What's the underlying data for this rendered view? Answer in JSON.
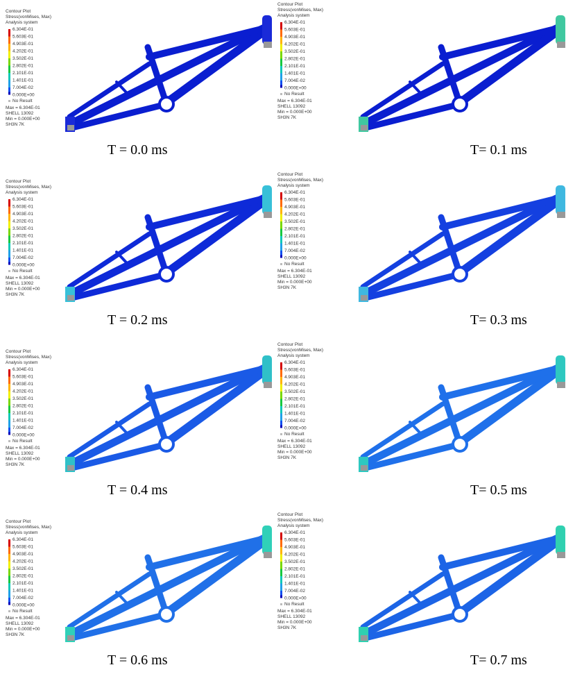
{
  "legend": {
    "title": "Contour Plot",
    "subtitle": "Stress(vonMises, Max)",
    "system": "Analysis system",
    "levels": [
      "6.304E-01",
      "5.603E-01",
      "4.903E-01",
      "4.202E-01",
      "3.502E-01",
      "2.802E-01",
      "2.101E-01",
      "1.401E-01",
      "7.004E-02",
      "0.000E+00"
    ],
    "level_colors": [
      "#d40000",
      "#ff6a00",
      "#ffb400",
      "#f0f000",
      "#7ad800",
      "#18c840",
      "#10c8b8",
      "#20a0e8",
      "#1050f0",
      "#0000b8"
    ],
    "no_result": "No Result",
    "max": "Max = 6.304E-01",
    "element": "SHELL 13092",
    "min": "Min = 0.000E+00",
    "node": "SH3N 7K"
  },
  "panels": [
    {
      "caption": "T = 0.0 ms",
      "frame_color": "#0a1ed0",
      "accent_color": "#1a2ad8"
    },
    {
      "caption": "T= 0.1 ms",
      "frame_color": "#0a1ed0",
      "accent_color": "#40c8a0"
    },
    {
      "caption": "T = 0.2 ms",
      "frame_color": "#0e2ad8",
      "accent_color": "#38c0d8"
    },
    {
      "caption": "T= 0.3 ms",
      "frame_color": "#1440e0",
      "accent_color": "#3fb8e0"
    },
    {
      "caption": "T = 0.4 ms",
      "frame_color": "#1a5ae6",
      "accent_color": "#30c0c8"
    },
    {
      "caption": "T= 0.5 ms",
      "frame_color": "#1f70ea",
      "accent_color": "#2ec8c0"
    },
    {
      "caption": "T = 0.6 ms",
      "frame_color": "#2070e8",
      "accent_color": "#30d0b8"
    },
    {
      "caption": "T= 0.7 ms",
      "frame_color": "#1c64e6",
      "accent_color": "#30d0b0"
    }
  ]
}
